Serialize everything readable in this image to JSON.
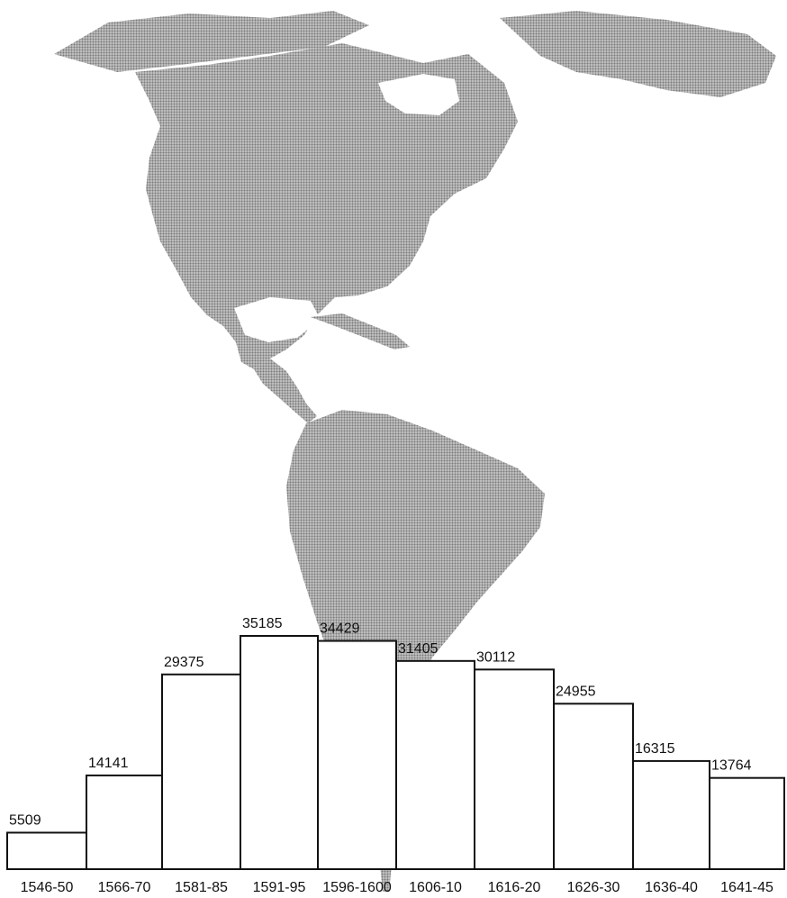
{
  "chart_data": {
    "type": "bar",
    "title": "",
    "xlabel": "",
    "ylabel": "",
    "categories": [
      "1546-50",
      "1566-70",
      "1581-85",
      "1591-95",
      "1596-1600",
      "1606-10",
      "1616-20",
      "1626-30",
      "1636-40",
      "1641-45"
    ],
    "values": [
      5509,
      14141,
      29375,
      35185,
      34429,
      31405,
      30112,
      24955,
      16315,
      13764
    ],
    "value_labels": [
      "5509",
      "14141",
      "29375",
      "35185",
      "34429",
      "31405",
      "30112",
      "24955",
      "16315",
      "13764"
    ],
    "ylim": [
      0,
      35185
    ],
    "grid": false,
    "legend": "none",
    "background_image": "map of the Americas (dotted grey)",
    "colors": {
      "bar_fill": "#ffffff",
      "bar_stroke": "#111111",
      "map_fill": "#9a9a9a"
    }
  }
}
